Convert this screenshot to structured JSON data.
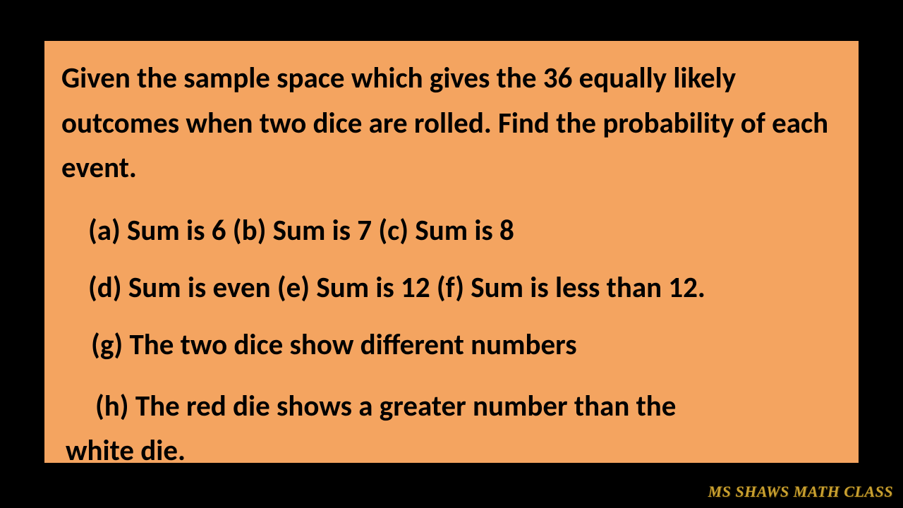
{
  "slide": {
    "background_color": "#f4a460",
    "page_background": "#000000",
    "text_color": "#000000",
    "font_weight": "bold",
    "font_size_pt": 30,
    "intro": "Given the sample space which gives the 36 equally likely outcomes when two dice are rolled. Find the probability of each event.",
    "options_row1": "(a)  Sum is 6    (b)  Sum is 7  (c)  Sum is 8",
    "options_row2": "(d) Sum is even  (e) Sum is 12 (f) Sum is less than 12.",
    "option_g": "(g) The two dice show different numbers",
    "option_h_line1": "(h) The red die shows a greater number than the",
    "option_h_line2": "white die."
  },
  "watermark": {
    "text": "MS SHAWS MATH CLASS",
    "color": "#c9a030",
    "font_size_pt": 16
  }
}
